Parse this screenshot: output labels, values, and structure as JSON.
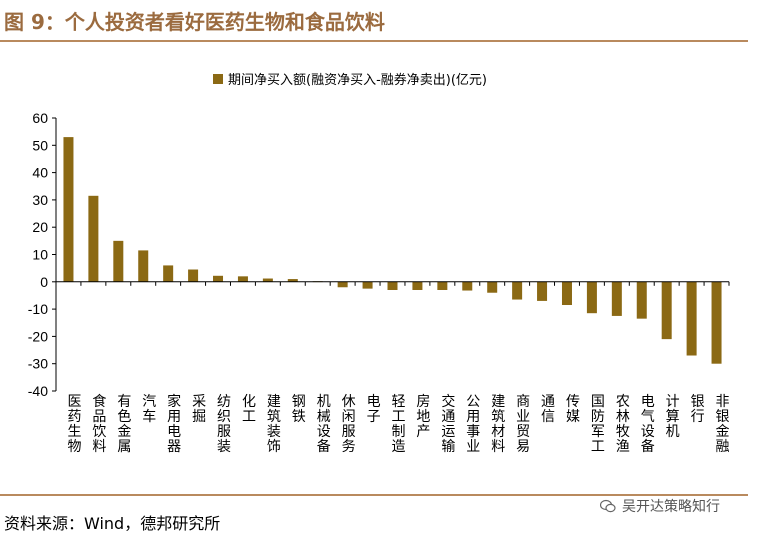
{
  "figure": {
    "title": "图 9：个人投资者看好医药生物和食品饮料",
    "source": "资料来源：Wind，德邦研究所",
    "watermark": "吴开达策略知行",
    "watermark_icon": "wechat-icon"
  },
  "colors": {
    "bar": "#8b6914",
    "title": "#9b6b3f",
    "rule": "#b98a5e"
  },
  "chart_data": {
    "type": "bar",
    "title": "",
    "xlabel": "",
    "ylabel": "",
    "legend": {
      "position": "top",
      "entries": [
        "期间净买入额(融资净买入-融券净卖出)(亿元)"
      ]
    },
    "ylim": [
      -40,
      60
    ],
    "yticks": [
      -40,
      -30,
      -20,
      -10,
      0,
      10,
      20,
      30,
      40,
      50,
      60
    ],
    "grid": false,
    "categories": [
      "医药生物",
      "食品饮料",
      "有色金属",
      "汽车",
      "家用电器",
      "采掘",
      "纺织服装",
      "化工",
      "建筑装饰",
      "钢铁",
      "机械设备",
      "休闲服务",
      "电子",
      "轻工制造",
      "房地产",
      "交通运输",
      "公用事业",
      "建筑材料",
      "商业贸易",
      "通信",
      "传媒",
      "国防军工",
      "农林牧渔",
      "电气设备",
      "计算机",
      "银行",
      "非银金融"
    ],
    "series": [
      {
        "name": "期间净买入额(融资净买入-融券净卖出)(亿元)",
        "values": [
          53,
          31.5,
          15,
          11.5,
          6,
          4.5,
          2.2,
          2,
          1.2,
          1,
          0.2,
          -2,
          -2.5,
          -3,
          -3,
          -3,
          -3.2,
          -4,
          -6.5,
          -7,
          -8.5,
          -11.5,
          -12.5,
          -13.5,
          -21,
          -27,
          -30
        ]
      }
    ]
  }
}
